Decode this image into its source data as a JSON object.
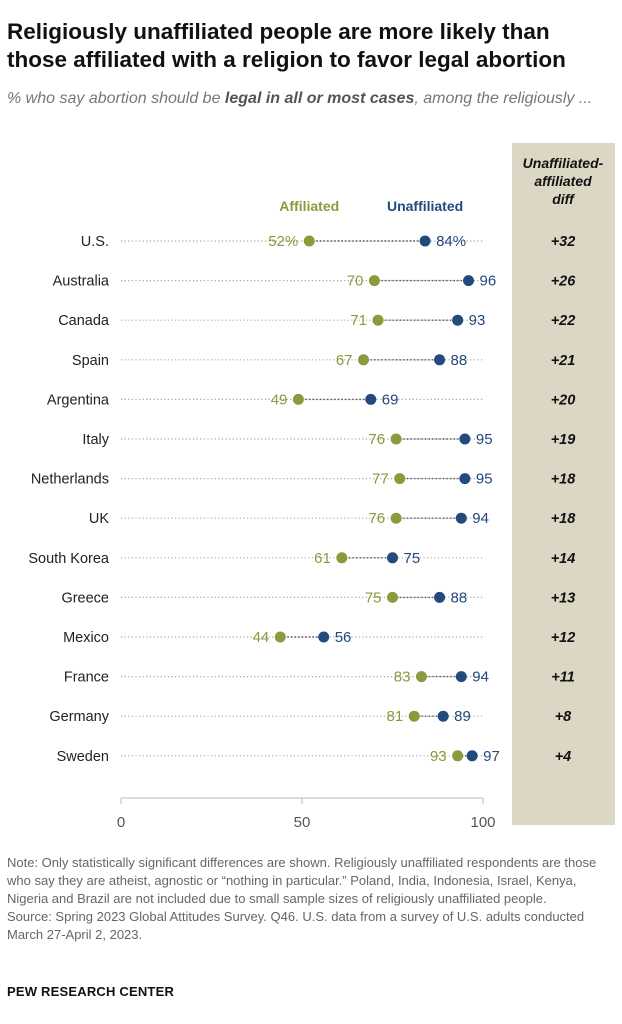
{
  "title": "Religiously unaffiliated people are more likely than those affiliated with a religion to favor legal abortion",
  "subtitle": {
    "before": "% who say abortion should be ",
    "emphasis": "legal in all or most cases",
    "after": ", among the religiously ..."
  },
  "colors": {
    "affiliated": "#8a9a3c",
    "unaffiliated": "#234a7c",
    "diff_panel": "#dcd7c4"
  },
  "chart_data": {
    "type": "dot",
    "legend": [
      "Affiliated",
      "Unaffiliated"
    ],
    "diff_header": "Unaffiliated-affiliated diff",
    "xlim": [
      0,
      100
    ],
    "xticks": [
      0,
      50,
      100
    ],
    "categories": [
      "U.S.",
      "Australia",
      "Canada",
      "Spain",
      "Argentina",
      "Italy",
      "Netherlands",
      "UK",
      "South Korea",
      "Greece",
      "Mexico",
      "France",
      "Germany",
      "Sweden"
    ],
    "series": [
      {
        "name": "Affiliated",
        "values": [
          52,
          70,
          71,
          67,
          49,
          76,
          77,
          76,
          61,
          75,
          44,
          83,
          81,
          93
        ],
        "labels": [
          "52%",
          "70",
          "71",
          "67",
          "49",
          "76",
          "77",
          "76",
          "61",
          "75",
          "44",
          "83",
          "81",
          "93"
        ]
      },
      {
        "name": "Unaffiliated",
        "values": [
          84,
          96,
          93,
          88,
          69,
          95,
          95,
          94,
          75,
          88,
          56,
          94,
          89,
          97
        ],
        "labels": [
          "84%",
          "96",
          "93",
          "88",
          "69",
          "95",
          "95",
          "94",
          "75",
          "88",
          "56",
          "94",
          "89",
          "97"
        ]
      }
    ],
    "diff": [
      "+32",
      "+26",
      "+22",
      "+21",
      "+20",
      "+19",
      "+18",
      "+18",
      "+14",
      "+13",
      "+12",
      "+11",
      "+8",
      "+4"
    ]
  },
  "note": "Note: Only statistically significant differences are shown. Religiously unaffiliated respondents are those who say they are atheist, agnostic or “nothing in particular.” Poland, India, Indonesia, Israel, Kenya, Nigeria and Brazil are not included due to small sample sizes of religiously unaffiliated people.",
  "source": "Source: Spring 2023 Global Attitudes Survey. Q46. U.S. data from a survey of U.S. adults conducted March 27-April 2, 2023.",
  "footer": "PEW RESEARCH CENTER"
}
